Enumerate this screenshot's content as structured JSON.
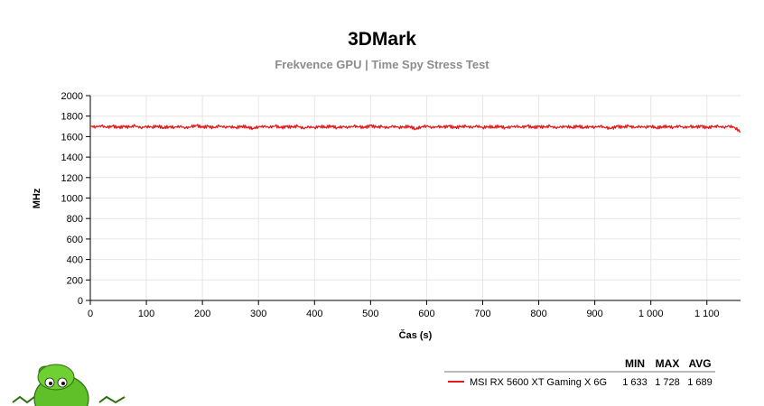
{
  "chart_data": {
    "type": "line",
    "title": "3DMark",
    "subtitle": "Frekvence GPU | Time Spy Stress Test",
    "xlabel": "Čas (s)",
    "ylabel": "MHz",
    "xlim": [
      0,
      1160
    ],
    "ylim": [
      0,
      2000
    ],
    "x_ticks": [
      {
        "value": 0,
        "label": "0"
      },
      {
        "value": 100,
        "label": "100"
      },
      {
        "value": 200,
        "label": "200"
      },
      {
        "value": 300,
        "label": "300"
      },
      {
        "value": 400,
        "label": "400"
      },
      {
        "value": 500,
        "label": "500"
      },
      {
        "value": 600,
        "label": "600"
      },
      {
        "value": 700,
        "label": "700"
      },
      {
        "value": 800,
        "label": "800"
      },
      {
        "value": 900,
        "label": "900"
      },
      {
        "value": 1000,
        "label": "1 000"
      },
      {
        "value": 1100,
        "label": "1 100"
      }
    ],
    "y_ticks": [
      {
        "value": 0,
        "label": "0"
      },
      {
        "value": 200,
        "label": "200"
      },
      {
        "value": 400,
        "label": "400"
      },
      {
        "value": 600,
        "label": "600"
      },
      {
        "value": 800,
        "label": "800"
      },
      {
        "value": 1000,
        "label": "1000"
      },
      {
        "value": 1200,
        "label": "1200"
      },
      {
        "value": 1400,
        "label": "1400"
      },
      {
        "value": 1600,
        "label": "1600"
      },
      {
        "value": 1800,
        "label": "1800"
      },
      {
        "value": 2000,
        "label": "2000"
      }
    ],
    "grid": true,
    "legend_placement": "bottom-right",
    "legend_columns": [
      "MIN",
      "MAX",
      "AVG"
    ],
    "series": [
      {
        "name": "MSI RX 5600 XT Gaming X 6G",
        "color": "#e41a1c",
        "min": "1 633",
        "max": "1 728",
        "avg": "1 689",
        "x": [
          0,
          10,
          20,
          30,
          40,
          50,
          60,
          70,
          80,
          90,
          100,
          110,
          120,
          130,
          140,
          150,
          160,
          170,
          180,
          190,
          200,
          210,
          220,
          230,
          240,
          250,
          260,
          270,
          280,
          290,
          300,
          310,
          320,
          330,
          340,
          350,
          360,
          370,
          380,
          390,
          400,
          410,
          420,
          430,
          440,
          450,
          460,
          470,
          480,
          490,
          500,
          510,
          520,
          530,
          540,
          550,
          560,
          570,
          580,
          590,
          600,
          610,
          620,
          630,
          640,
          650,
          660,
          670,
          680,
          690,
          700,
          710,
          720,
          730,
          740,
          750,
          760,
          770,
          780,
          790,
          800,
          810,
          820,
          830,
          840,
          850,
          860,
          870,
          880,
          890,
          900,
          910,
          920,
          930,
          940,
          950,
          960,
          970,
          980,
          990,
          1000,
          1010,
          1020,
          1030,
          1040,
          1050,
          1060,
          1070,
          1080,
          1090,
          1100,
          1110,
          1120,
          1130,
          1140,
          1150,
          1160
        ],
        "y": [
          1700,
          1695,
          1705,
          1690,
          1702,
          1688,
          1698,
          1692,
          1706,
          1685,
          1699,
          1693,
          1703,
          1687,
          1697,
          1691,
          1701,
          1684,
          1696,
          1708,
          1690,
          1700,
          1686,
          1704,
          1692,
          1698,
          1688,
          1702,
          1694,
          1680,
          1696,
          1700,
          1690,
          1704,
          1686,
          1698,
          1692,
          1702,
          1680,
          1696,
          1688,
          1700,
          1692,
          1704,
          1686,
          1698,
          1690,
          1702,
          1694,
          1688,
          1708,
          1692,
          1698,
          1686,
          1702,
          1690,
          1696,
          1700,
          1675,
          1694,
          1704,
          1688,
          1698,
          1692,
          1702,
          1686,
          1696,
          1700,
          1690,
          1704,
          1688,
          1698,
          1692,
          1702,
          1686,
          1696,
          1700,
          1690,
          1704,
          1688,
          1698,
          1692,
          1702,
          1686,
          1696,
          1700,
          1690,
          1704,
          1688,
          1698,
          1692,
          1702,
          1686,
          1680,
          1700,
          1690,
          1704,
          1688,
          1698,
          1692,
          1702,
          1686,
          1696,
          1700,
          1690,
          1704,
          1688,
          1698,
          1692,
          1702,
          1686,
          1696,
          1700,
          1690,
          1704,
          1688,
          1645
        ]
      }
    ]
  }
}
